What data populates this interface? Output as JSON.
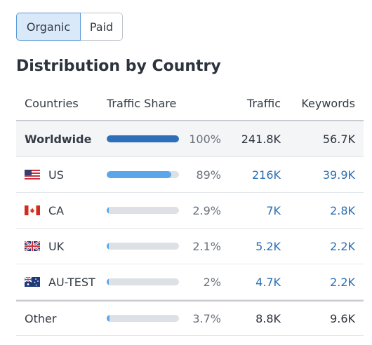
{
  "toggle": {
    "organic_label": "Organic",
    "paid_label": "Paid"
  },
  "title": "Distribution by Country",
  "colors": {
    "bar_primary": "#2e6fba",
    "bar_secondary": "#5ba6ea",
    "bar_track": "#dde1e6",
    "link": "#2b6fb3"
  },
  "table": {
    "headers": {
      "countries": "Countries",
      "share": "Traffic Share",
      "traffic": "Traffic",
      "keywords": "Keywords"
    },
    "rows": [
      {
        "country": "Worldwide",
        "flag": "",
        "share": 1.0,
        "share_label": "100%",
        "traffic": "241.8K",
        "keywords": "56.7K"
      },
      {
        "country": "US",
        "flag": "us-flag-icon",
        "share": 0.89,
        "share_label": "89%",
        "traffic": "216K",
        "keywords": "39.9K"
      },
      {
        "country": "CA",
        "flag": "ca-flag-icon",
        "share": 0.029,
        "share_label": "2.9%",
        "traffic": "7K",
        "keywords": "2.8K"
      },
      {
        "country": "UK",
        "flag": "uk-flag-icon",
        "share": 0.021,
        "share_label": "2.1%",
        "traffic": "5.2K",
        "keywords": "2.2K"
      },
      {
        "country": "AU-TEST",
        "flag": "au-flag-icon",
        "share": 0.02,
        "share_label": "2%",
        "traffic": "4.7K",
        "keywords": "2.2K"
      },
      {
        "country": "Other",
        "flag": "",
        "share": 0.037,
        "share_label": "3.7%",
        "traffic": "8.8K",
        "keywords": "9.6K"
      }
    ]
  }
}
